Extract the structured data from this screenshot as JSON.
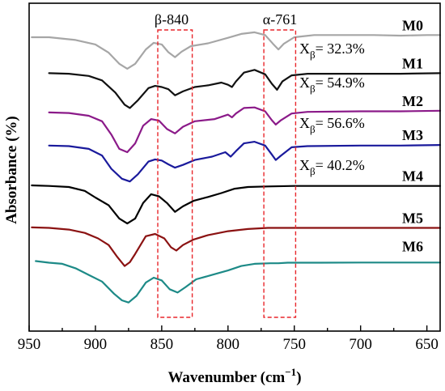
{
  "chart_data": {
    "type": "line",
    "xlabel": "Wavenumber (cm⁻¹)",
    "ylabel": "Absorbance (%)",
    "xlim": [
      950,
      640
    ],
    "x_reversed": true,
    "xticks": [
      950,
      900,
      850,
      800,
      750,
      700,
      650
    ],
    "yticks_shown": false,
    "series": [
      {
        "name": "M0",
        "color": "#a6a6a6",
        "baseline": 0.0,
        "points": [
          [
            948,
            0.22
          ],
          [
            935,
            0.22
          ],
          [
            915,
            0.245
          ],
          [
            900,
            0.285
          ],
          [
            890,
            0.36
          ],
          [
            882,
            0.46
          ],
          [
            876,
            0.505
          ],
          [
            870,
            0.46
          ],
          [
            862,
            0.33
          ],
          [
            856,
            0.27
          ],
          [
            850,
            0.285
          ],
          [
            845,
            0.355
          ],
          [
            840,
            0.4
          ],
          [
            835,
            0.35
          ],
          [
            828,
            0.3
          ],
          [
            815,
            0.275
          ],
          [
            800,
            0.225
          ],
          [
            790,
            0.19
          ],
          [
            780,
            0.175
          ],
          [
            772,
            0.2
          ],
          [
            766,
            0.28
          ],
          [
            762,
            0.33
          ],
          [
            758,
            0.28
          ],
          [
            750,
            0.22
          ],
          [
            735,
            0.2
          ],
          [
            710,
            0.2
          ],
          [
            690,
            0.2
          ],
          [
            670,
            0.205
          ],
          [
            650,
            0.2
          ],
          [
            640,
            0.2
          ]
        ]
      },
      {
        "name": "M1",
        "color": "#111111",
        "baseline": 0.0,
        "points": [
          [
            935,
            0.545
          ],
          [
            920,
            0.55
          ],
          [
            905,
            0.57
          ],
          [
            895,
            0.61
          ],
          [
            885,
            0.72
          ],
          [
            878,
            0.83
          ],
          [
            874,
            0.86
          ],
          [
            868,
            0.79
          ],
          [
            860,
            0.68
          ],
          [
            855,
            0.66
          ],
          [
            850,
            0.67
          ],
          [
            845,
            0.69
          ],
          [
            840,
            0.745
          ],
          [
            834,
            0.71
          ],
          [
            825,
            0.67
          ],
          [
            815,
            0.655
          ],
          [
            805,
            0.63
          ],
          [
            800,
            0.65
          ],
          [
            797,
            0.67
          ],
          [
            794,
            0.62
          ],
          [
            788,
            0.54
          ],
          [
            780,
            0.515
          ],
          [
            772,
            0.555
          ],
          [
            767,
            0.64
          ],
          [
            763,
            0.695
          ],
          [
            759,
            0.62
          ],
          [
            752,
            0.565
          ],
          [
            740,
            0.55
          ],
          [
            700,
            0.55
          ],
          [
            670,
            0.55
          ],
          [
            640,
            0.545
          ]
        ]
      },
      {
        "name": "M2",
        "color": "#8b1a89",
        "baseline": 0.0,
        "points": [
          [
            935,
            0.9
          ],
          [
            920,
            0.905
          ],
          [
            905,
            0.93
          ],
          [
            895,
            0.98
          ],
          [
            888,
            1.1
          ],
          [
            882,
            1.23
          ],
          [
            876,
            1.26
          ],
          [
            870,
            1.18
          ],
          [
            864,
            1.02
          ],
          [
            858,
            0.96
          ],
          [
            852,
            0.975
          ],
          [
            846,
            1.05
          ],
          [
            840,
            1.09
          ],
          [
            834,
            1.03
          ],
          [
            825,
            0.98
          ],
          [
            810,
            0.96
          ],
          [
            800,
            0.92
          ],
          [
            797,
            0.945
          ],
          [
            794,
            0.91
          ],
          [
            788,
            0.86
          ],
          [
            780,
            0.855
          ],
          [
            772,
            0.89
          ],
          [
            767,
            0.97
          ],
          [
            764,
            1.01
          ],
          [
            760,
            0.97
          ],
          [
            752,
            0.91
          ],
          [
            740,
            0.895
          ],
          [
            700,
            0.89
          ],
          [
            670,
            0.89
          ],
          [
            640,
            0.885
          ]
        ]
      },
      {
        "name": "M3",
        "color": "#1a1a9c",
        "baseline": 0.0,
        "points": [
          [
            935,
            1.2
          ],
          [
            920,
            1.205
          ],
          [
            905,
            1.23
          ],
          [
            895,
            1.29
          ],
          [
            888,
            1.41
          ],
          [
            880,
            1.5
          ],
          [
            874,
            1.525
          ],
          [
            868,
            1.46
          ],
          [
            860,
            1.345
          ],
          [
            855,
            1.325
          ],
          [
            850,
            1.335
          ],
          [
            845,
            1.37
          ],
          [
            840,
            1.4
          ],
          [
            834,
            1.375
          ],
          [
            825,
            1.33
          ],
          [
            812,
            1.3
          ],
          [
            802,
            1.26
          ],
          [
            798,
            1.3
          ],
          [
            794,
            1.25
          ],
          [
            788,
            1.18
          ],
          [
            780,
            1.165
          ],
          [
            772,
            1.2
          ],
          [
            767,
            1.28
          ],
          [
            764,
            1.33
          ],
          [
            760,
            1.29
          ],
          [
            752,
            1.215
          ],
          [
            740,
            1.205
          ],
          [
            700,
            1.2
          ],
          [
            670,
            1.2
          ],
          [
            640,
            1.195
          ]
        ]
      },
      {
        "name": "M4",
        "color": "#000000",
        "baseline": 0.0,
        "points": [
          [
            948,
            1.56
          ],
          [
            935,
            1.565
          ],
          [
            920,
            1.575
          ],
          [
            908,
            1.61
          ],
          [
            900,
            1.67
          ],
          [
            890,
            1.74
          ],
          [
            882,
            1.86
          ],
          [
            876,
            1.905
          ],
          [
            870,
            1.86
          ],
          [
            864,
            1.72
          ],
          [
            858,
            1.64
          ],
          [
            852,
            1.66
          ],
          [
            846,
            1.72
          ],
          [
            840,
            1.8
          ],
          [
            834,
            1.75
          ],
          [
            826,
            1.7
          ],
          [
            815,
            1.665
          ],
          [
            805,
            1.63
          ],
          [
            795,
            1.59
          ],
          [
            785,
            1.575
          ],
          [
            770,
            1.57
          ],
          [
            750,
            1.565
          ],
          [
            720,
            1.565
          ],
          [
            690,
            1.565
          ],
          [
            660,
            1.565
          ],
          [
            640,
            1.565
          ]
        ]
      },
      {
        "name": "M5",
        "color": "#8b1212",
        "baseline": 0.0,
        "points": [
          [
            948,
            1.94
          ],
          [
            935,
            1.945
          ],
          [
            920,
            1.96
          ],
          [
            908,
            1.99
          ],
          [
            898,
            2.04
          ],
          [
            890,
            2.1
          ],
          [
            884,
            2.2
          ],
          [
            878,
            2.29
          ],
          [
            874,
            2.255
          ],
          [
            870,
            2.18
          ],
          [
            862,
            2.02
          ],
          [
            855,
            2.0
          ],
          [
            848,
            2.04
          ],
          [
            843,
            2.12
          ],
          [
            839,
            2.15
          ],
          [
            834,
            2.1
          ],
          [
            826,
            2.05
          ],
          [
            815,
            2.01
          ],
          [
            800,
            1.975
          ],
          [
            785,
            1.955
          ],
          [
            770,
            1.945
          ],
          [
            750,
            1.945
          ],
          [
            720,
            1.945
          ],
          [
            690,
            1.945
          ],
          [
            660,
            1.945
          ],
          [
            640,
            1.945
          ]
        ]
      },
      {
        "name": "M6",
        "color": "#1d8a87",
        "baseline": 0.0,
        "points": [
          [
            945,
            2.245
          ],
          [
            935,
            2.26
          ],
          [
            925,
            2.27
          ],
          [
            915,
            2.31
          ],
          [
            905,
            2.37
          ],
          [
            895,
            2.43
          ],
          [
            886,
            2.54
          ],
          [
            880,
            2.6
          ],
          [
            875,
            2.62
          ],
          [
            869,
            2.56
          ],
          [
            862,
            2.44
          ],
          [
            856,
            2.395
          ],
          [
            850,
            2.42
          ],
          [
            844,
            2.5
          ],
          [
            838,
            2.53
          ],
          [
            832,
            2.48
          ],
          [
            824,
            2.41
          ],
          [
            812,
            2.37
          ],
          [
            800,
            2.33
          ],
          [
            790,
            2.29
          ],
          [
            780,
            2.27
          ],
          [
            768,
            2.265
          ],
          [
            762,
            2.265
          ],
          [
            755,
            2.26
          ],
          [
            730,
            2.26
          ],
          [
            700,
            2.258
          ],
          [
            670,
            2.258
          ],
          [
            650,
            2.258
          ],
          [
            640,
            2.258
          ]
        ]
      }
    ],
    "annotations": [
      {
        "text": "β-840",
        "box_x": [
          853,
          827
        ]
      },
      {
        "text": "α-761",
        "box_x": [
          773,
          749
        ]
      },
      {
        "label": "X",
        "sub": "β",
        "value": "= 32.3%",
        "series": "M0"
      },
      {
        "label": "X",
        "sub": "β",
        "value": "= 54.9%",
        "series": "M1"
      },
      {
        "label": "X",
        "sub": "β",
        "value": "= 56.6%",
        "series": "M2"
      },
      {
        "label": "X",
        "sub": "β",
        "value": "= 40.2%",
        "series": "M3"
      }
    ]
  },
  "labels": {
    "beta_box": "β-840",
    "alpha_box": "α-761",
    "x_title_main": "Wavenumber (cm",
    "x_title_sup": "−1",
    "x_title_end": ")",
    "y_title": "Absorbance (%)"
  },
  "xt": [
    {
      "v": 950,
      "t": "950"
    },
    {
      "v": 900,
      "t": "900"
    },
    {
      "v": 850,
      "t": "850"
    },
    {
      "v": 800,
      "t": "800"
    },
    {
      "v": 750,
      "t": "750"
    },
    {
      "v": 700,
      "t": "700"
    },
    {
      "v": 650,
      "t": "650"
    }
  ]
}
